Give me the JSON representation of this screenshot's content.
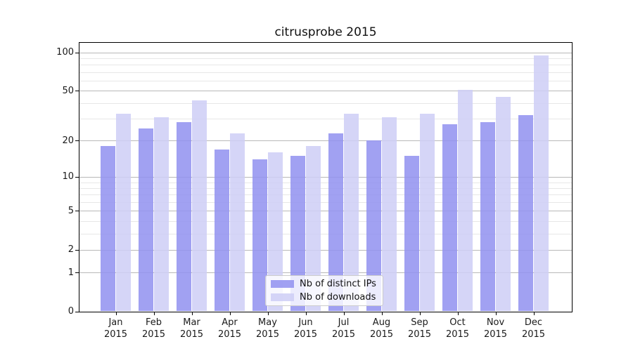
{
  "chart_data": {
    "type": "bar",
    "title": "citrusprobe 2015",
    "categories": [
      "Jan",
      "Feb",
      "Mar",
      "Apr",
      "May",
      "Jun",
      "Jul",
      "Aug",
      "Sep",
      "Oct",
      "Nov",
      "Dec"
    ],
    "category_year": "2015",
    "series": [
      {
        "name": "Nb of distinct IPs",
        "color": "#9090f0",
        "values": [
          18,
          25,
          28,
          17,
          14,
          15,
          23,
          20,
          15,
          27,
          28,
          32
        ]
      },
      {
        "name": "Nb of downloads",
        "color": "#cecef6",
        "values": [
          33,
          31,
          42,
          23,
          16,
          18,
          33,
          31,
          33,
          51,
          45,
          95
        ]
      }
    ],
    "yscale": "log1p",
    "ylim": [
      0,
      120
    ],
    "yticks_major": [
      0,
      1,
      2,
      5,
      10,
      20,
      50,
      100
    ],
    "yticks_minor": [
      3,
      4,
      6,
      7,
      8,
      9,
      30,
      40,
      60,
      70,
      80,
      90
    ],
    "grid": true,
    "legend_position": "lower center",
    "xlabel": "",
    "ylabel": ""
  },
  "colors": {
    "grid_major": "#b8b8b8",
    "grid_minor": "#e7e7e7",
    "axis": "#000000",
    "text": "#1a1a1a",
    "legend_border": "#cccccc",
    "background": "#ffffff"
  }
}
